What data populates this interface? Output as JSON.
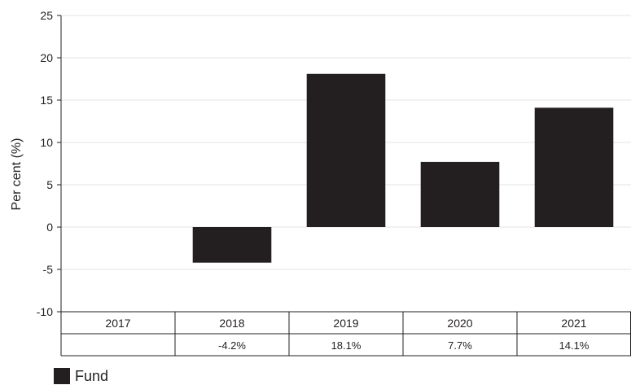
{
  "chart_data": {
    "type": "bar",
    "categories": [
      "2017",
      "2018",
      "2019",
      "2020",
      "2021"
    ],
    "series": [
      {
        "name": "Fund",
        "values": [
          null,
          -4.2,
          18.1,
          7.7,
          14.1
        ]
      }
    ],
    "value_labels": [
      "",
      "-4.2%",
      "18.1%",
      "7.7%",
      "14.1%"
    ],
    "ylabel": "Per cent (%)",
    "ylim": [
      -10,
      25
    ],
    "yticks": [
      25,
      20,
      15,
      10,
      5,
      0,
      -5,
      -10
    ],
    "grid": true,
    "legend_placement": "bottom-left",
    "bar_color": "#231f20"
  }
}
